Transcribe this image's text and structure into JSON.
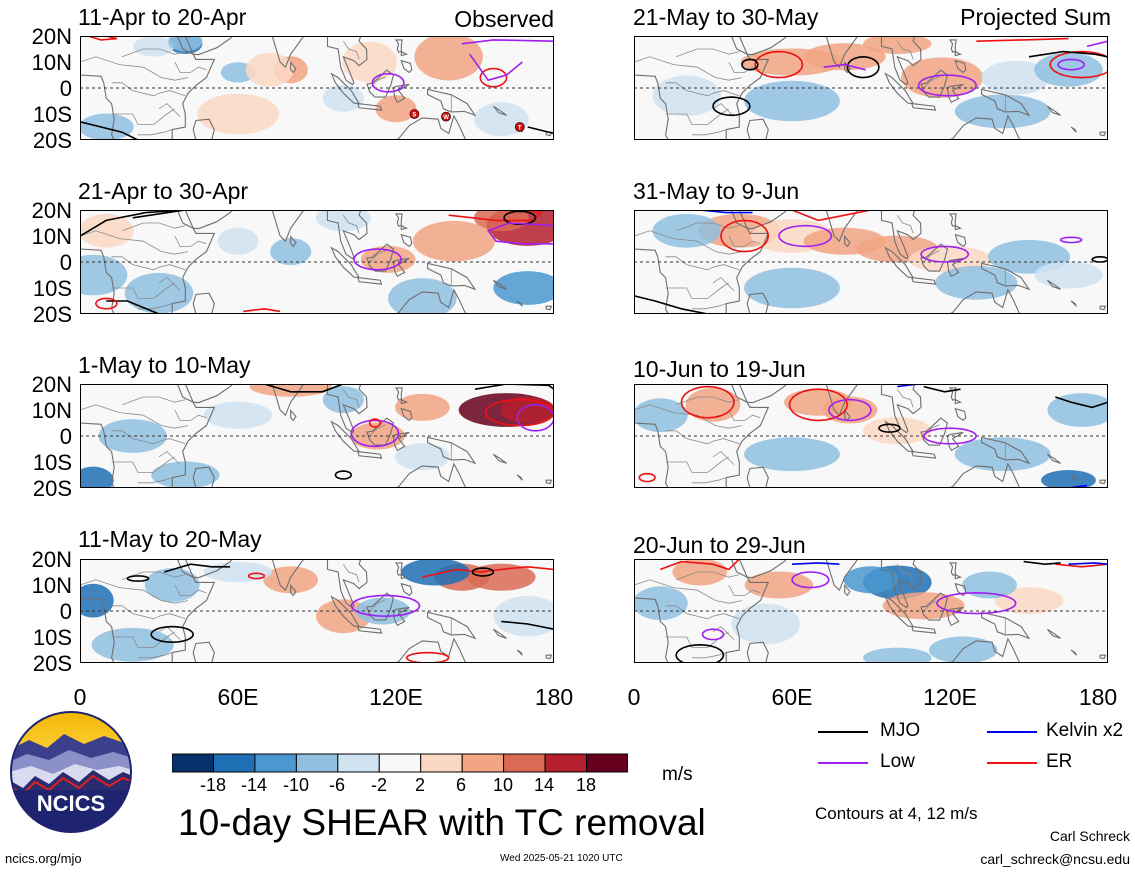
{
  "column_labels": {
    "left": "Observed",
    "right": "Projected Sum"
  },
  "panels": [
    {
      "title": "11-Apr to 20-Apr"
    },
    {
      "title": "21-Apr to 30-Apr"
    },
    {
      "title": "1-May to 10-May"
    },
    {
      "title": "11-May to 20-May"
    },
    {
      "title": "21-May to 30-May"
    },
    {
      "title": "31-May to 9-Jun"
    },
    {
      "title": "10-Jun to 19-Jun"
    },
    {
      "title": "20-Jun to 29-Jun"
    }
  ],
  "lat_labels": [
    "20N",
    "10N",
    "0",
    "10S",
    "20S"
  ],
  "lon_labels": [
    "0",
    "60E",
    "120E",
    "180"
  ],
  "legend": {
    "mjo": "MJO",
    "kelvin": "Kelvin x2",
    "low": "Low",
    "er": "ER",
    "colors": {
      "mjo": "#000000",
      "kelvin": "#0000ee",
      "low": "#a020f0",
      "er": "#ee1111"
    }
  },
  "colorbar": {
    "ticks": [
      "-18",
      "-14",
      "-10",
      "-6",
      "-2",
      "2",
      "6",
      "10",
      "14",
      "18"
    ],
    "colors": [
      "#08306b",
      "#1f6fb5",
      "#4a98cf",
      "#8fc0e0",
      "#cfe3f1",
      "#f8f8f8",
      "#fbd8c4",
      "#f1a582",
      "#db6a55",
      "#b5202e",
      "#67001f"
    ],
    "units": "m/s"
  },
  "title": "10-day SHEAR with TC removal",
  "contours_note": "Contours at 4, 12 m/s",
  "logo_text": "NCICS",
  "tc_markers": [
    "S",
    "W",
    "T"
  ],
  "footer": {
    "url": "ncics.org/mjo",
    "timestamp": "Wed 2025-05-21 1020 UTC",
    "author": "Carl Schreck",
    "email": "carl_schreck@ncsu.edu"
  }
}
